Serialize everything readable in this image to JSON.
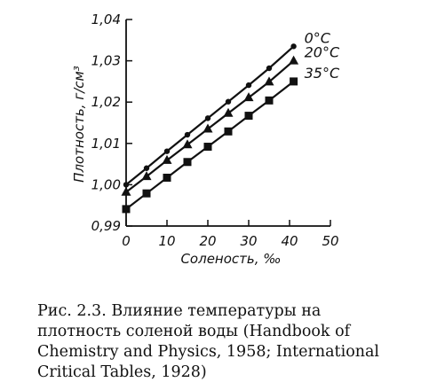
{
  "chart_data": {
    "type": "line",
    "xlabel": "Соленость, ‰",
    "ylabel": "Плотность, г/см³",
    "xlim": [
      0,
      50
    ],
    "ylim": [
      0.99,
      1.04
    ],
    "x_ticks": [
      "0",
      "10",
      "20",
      "30",
      "40",
      "50"
    ],
    "y_ticks": [
      "0,99",
      "1,00",
      "1,01",
      "1,02",
      "1,03",
      "1,04"
    ],
    "grid": false,
    "legend": "labels at line ends",
    "series": [
      {
        "name": "0°C",
        "marker": "circle",
        "x": [
          0,
          5,
          10,
          15,
          20,
          25,
          30,
          35,
          41
        ],
        "y": [
          1.0,
          1.004,
          1.0081,
          1.0121,
          1.0161,
          1.0201,
          1.0241,
          1.0282,
          1.0335
        ]
      },
      {
        "name": "20°C",
        "marker": "triangle",
        "x": [
          0,
          5,
          10,
          15,
          20,
          25,
          30,
          35,
          41
        ],
        "y": [
          0.9982,
          1.002,
          1.0059,
          1.0097,
          1.0135,
          1.0173,
          1.0211,
          1.0249,
          1.03
        ]
      },
      {
        "name": "35°C",
        "marker": "square",
        "x": [
          0,
          5,
          10,
          15,
          20,
          25,
          30,
          35,
          41
        ],
        "y": [
          0.9941,
          0.9979,
          1.0017,
          1.0055,
          1.0092,
          1.0129,
          1.0167,
          1.0204,
          1.025
        ]
      }
    ]
  },
  "caption": "Рис. 2.3. Влияние температуры на плотность соленой воды (Handbook of Chemistry and Physics, 1958; International Critical Tables, 1928)"
}
